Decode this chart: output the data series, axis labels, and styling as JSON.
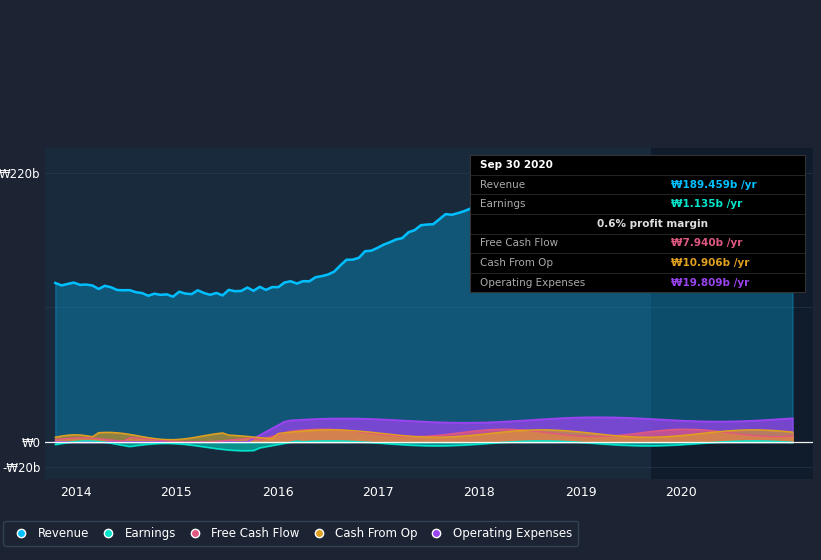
{
  "bg_color": "#1c2333",
  "plot_bg_color": "#1a2a3d",
  "grid_color": "#2a3f55",
  "ylim": [
    -30,
    240
  ],
  "xlim": [
    2013.7,
    2021.3
  ],
  "xticks": [
    2014,
    2015,
    2016,
    2017,
    2018,
    2019,
    2020
  ],
  "colors": {
    "revenue": "#00bfff",
    "earnings": "#00e5cc",
    "free_cash_flow": "#e05880",
    "cash_from_op": "#e0a020",
    "operating_expenses": "#9944ee"
  },
  "shade_x_start": 2019.7,
  "shade_x_end": 2021.3,
  "tooltip_bg": "#000000",
  "tooltip_border": "#333333"
}
